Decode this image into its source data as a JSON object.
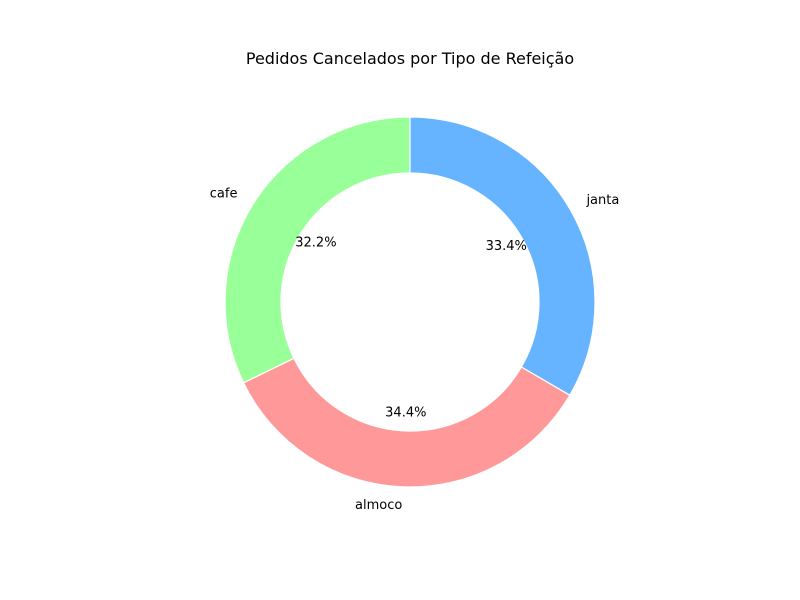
{
  "chart_data": {
    "type": "pie",
    "style": "donut",
    "title": "Pedidos Cancelados por Tipo de Refeição",
    "slices": [
      {
        "label": "cafe",
        "value": 32.2,
        "pct_label": "32.2%",
        "color": "#99ff99"
      },
      {
        "label": "almoco",
        "value": 34.4,
        "pct_label": "34.4%",
        "color": "#ff9999"
      },
      {
        "label": "janta",
        "value": 33.4,
        "pct_label": "33.4%",
        "color": "#66b3ff"
      }
    ],
    "start_angle_deg": 90,
    "direction": "counterclockwise",
    "legend": "none"
  }
}
